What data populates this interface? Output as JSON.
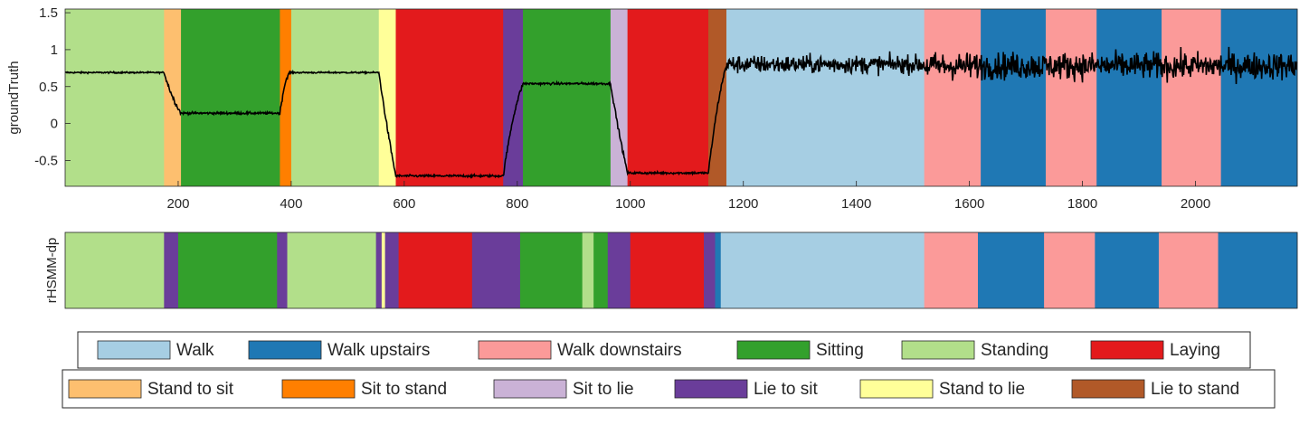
{
  "chart_data": [
    {
      "type": "area",
      "ylabel": "groundTruth",
      "xlim": [
        0,
        2180
      ],
      "ylim": [
        -0.85,
        1.55
      ],
      "yticks": [
        1.5,
        1,
        0.5,
        0,
        -0.5
      ],
      "ytick_labels": [
        "1.5",
        "1",
        "0.5",
        "0",
        "-0.5"
      ],
      "xticks": [
        200,
        400,
        600,
        800,
        1000,
        1200,
        1400,
        1600,
        1800,
        2000
      ],
      "xtick_labels": [
        "200",
        "400",
        "600",
        "800",
        "1000",
        "1200",
        "1400",
        "1600",
        "1800",
        "2000"
      ],
      "segments": [
        {
          "start": 0,
          "end": 175,
          "label": "Standing"
        },
        {
          "start": 175,
          "end": 205,
          "label": "Stand to sit"
        },
        {
          "start": 205,
          "end": 380,
          "label": "Sitting"
        },
        {
          "start": 380,
          "end": 400,
          "label": "Sit to stand"
        },
        {
          "start": 400,
          "end": 555,
          "label": "Standing"
        },
        {
          "start": 555,
          "end": 585,
          "label": "Stand to lie"
        },
        {
          "start": 585,
          "end": 775,
          "label": "Laying"
        },
        {
          "start": 775,
          "end": 810,
          "label": "Lie to sit"
        },
        {
          "start": 810,
          "end": 965,
          "label": "Sitting"
        },
        {
          "start": 965,
          "end": 995,
          "label": "Sit to lie"
        },
        {
          "start": 995,
          "end": 1138,
          "label": "Laying"
        },
        {
          "start": 1138,
          "end": 1170,
          "label": "Lie to stand"
        },
        {
          "start": 1170,
          "end": 1520,
          "label": "Walk"
        },
        {
          "start": 1520,
          "end": 1620,
          "label": "Walk downstairs"
        },
        {
          "start": 1620,
          "end": 1735,
          "label": "Walk upstairs"
        },
        {
          "start": 1735,
          "end": 1825,
          "label": "Walk downstairs"
        },
        {
          "start": 1825,
          "end": 1940,
          "label": "Walk upstairs"
        },
        {
          "start": 1940,
          "end": 2045,
          "label": "Walk downstairs"
        },
        {
          "start": 2045,
          "end": 2180,
          "label": "Walk upstairs"
        }
      ],
      "signal_levels": [
        {
          "start": 0,
          "end": 175,
          "level": 0.69,
          "noise": 0.01
        },
        {
          "start": 205,
          "end": 380,
          "level": 0.14,
          "noise": 0.015
        },
        {
          "start": 400,
          "end": 555,
          "level": 0.69,
          "noise": 0.01
        },
        {
          "start": 585,
          "end": 775,
          "level": -0.71,
          "noise": 0.015
        },
        {
          "start": 810,
          "end": 965,
          "level": 0.54,
          "noise": 0.015
        },
        {
          "start": 995,
          "end": 1138,
          "level": -0.67,
          "noise": 0.015
        },
        {
          "start": 1170,
          "end": 1520,
          "level": 0.8,
          "noise": 0.12
        },
        {
          "start": 1520,
          "end": 2180,
          "level": 0.78,
          "noise": 0.18
        }
      ]
    },
    {
      "type": "area",
      "ylabel": "rHSMM-dp",
      "xlim": [
        0,
        2180
      ],
      "segments": [
        {
          "start": 0,
          "end": 175,
          "label": "Standing"
        },
        {
          "start": 175,
          "end": 200,
          "label": "Lie to sit"
        },
        {
          "start": 200,
          "end": 375,
          "label": "Sitting"
        },
        {
          "start": 375,
          "end": 393,
          "label": "Lie to sit"
        },
        {
          "start": 393,
          "end": 550,
          "label": "Standing"
        },
        {
          "start": 550,
          "end": 560,
          "label": "Lie to sit"
        },
        {
          "start": 560,
          "end": 566,
          "label": "Stand to lie"
        },
        {
          "start": 566,
          "end": 590,
          "label": "Lie to sit"
        },
        {
          "start": 590,
          "end": 720,
          "label": "Laying"
        },
        {
          "start": 720,
          "end": 805,
          "label": "Lie to sit"
        },
        {
          "start": 805,
          "end": 915,
          "label": "Sitting"
        },
        {
          "start": 915,
          "end": 935,
          "label": "Standing"
        },
        {
          "start": 935,
          "end": 960,
          "label": "Sitting"
        },
        {
          "start": 960,
          "end": 1000,
          "label": "Lie to sit"
        },
        {
          "start": 1000,
          "end": 1130,
          "label": "Laying"
        },
        {
          "start": 1130,
          "end": 1150,
          "label": "Lie to sit"
        },
        {
          "start": 1150,
          "end": 1160,
          "label": "Walk upstairs"
        },
        {
          "start": 1160,
          "end": 1520,
          "label": "Walk"
        },
        {
          "start": 1520,
          "end": 1615,
          "label": "Walk downstairs"
        },
        {
          "start": 1615,
          "end": 1732,
          "label": "Walk upstairs"
        },
        {
          "start": 1732,
          "end": 1822,
          "label": "Walk downstairs"
        },
        {
          "start": 1822,
          "end": 1935,
          "label": "Walk upstairs"
        },
        {
          "start": 1935,
          "end": 2040,
          "label": "Walk downstairs"
        },
        {
          "start": 2040,
          "end": 2180,
          "label": "Walk upstairs"
        }
      ]
    }
  ],
  "legend": {
    "row1": [
      {
        "label": "Walk",
        "color": "#a6cee3"
      },
      {
        "label": "Walk upstairs",
        "color": "#1f78b4"
      },
      {
        "label": "Walk downstairs",
        "color": "#fb9a99"
      },
      {
        "label": "Sitting",
        "color": "#33a02c"
      },
      {
        "label": "Standing",
        "color": "#b2df8a"
      },
      {
        "label": "Laying",
        "color": "#e31a1c"
      }
    ],
    "row2": [
      {
        "label": "Stand to sit",
        "color": "#fdbf6f"
      },
      {
        "label": "Sit to stand",
        "color": "#ff7f00"
      },
      {
        "label": "Sit to lie",
        "color": "#cab2d6"
      },
      {
        "label": "Lie to sit",
        "color": "#6a3d9a"
      },
      {
        "label": "Stand to lie",
        "color": "#ffff99"
      },
      {
        "label": "Lie to stand",
        "color": "#b15928"
      }
    ]
  }
}
